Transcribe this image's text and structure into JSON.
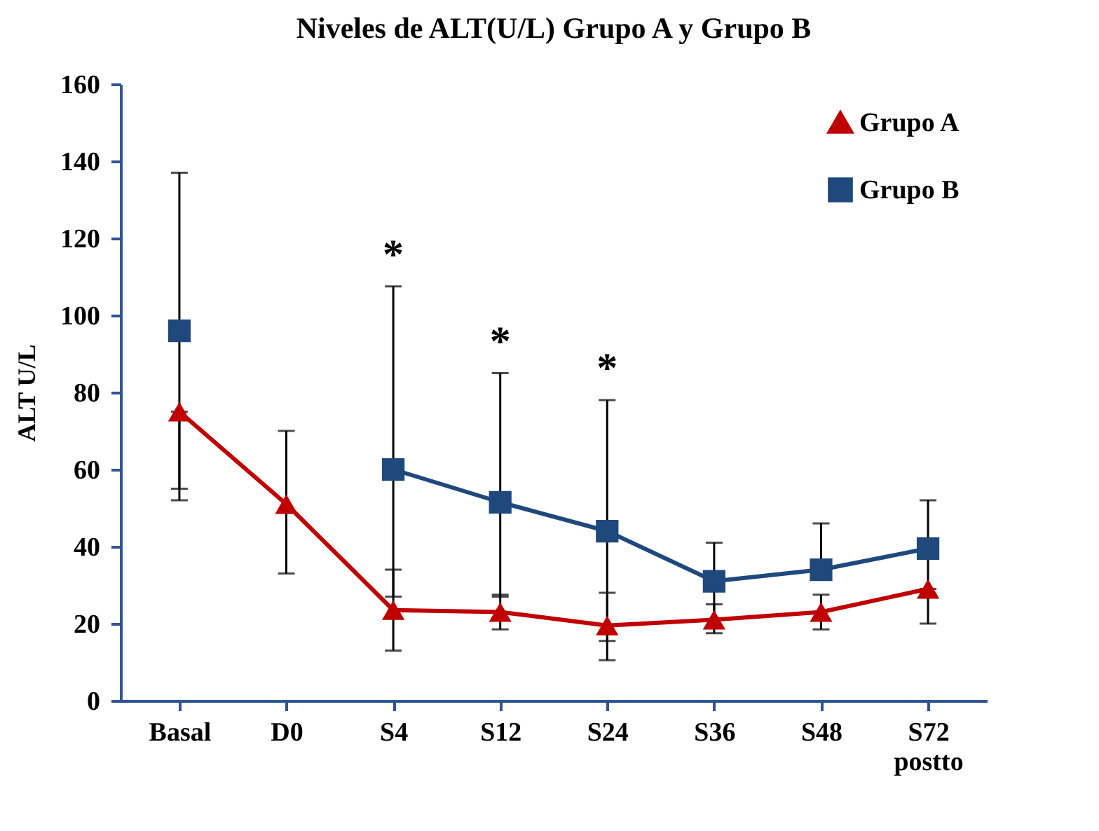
{
  "chart_data": {
    "type": "line",
    "title": "Niveles de ALT(U/L) Grupo A  y Grupo B",
    "ylabel": "ALT U/L",
    "categories": [
      "Basal",
      "D0",
      "S4",
      "S12",
      "S24",
      "S36",
      "S48",
      "S72 postto"
    ],
    "series": [
      {
        "name": "Grupo A",
        "color": "#c00000",
        "marker": "triangle",
        "values": [
          75,
          51,
          23.5,
          23,
          19.5,
          21,
          23,
          29
        ],
        "errors": [
          [
            52,
            75
          ],
          [
            33,
            70
          ],
          [
            13,
            34
          ],
          [
            18.5,
            27.5
          ],
          [
            10.5,
            28
          ],
          [
            17.5,
            25
          ],
          [
            18.5,
            27.5
          ],
          [
            20,
            29
          ]
        ]
      },
      {
        "name": "Grupo B",
        "color": "#1f497d",
        "marker": "square",
        "values": [
          96,
          null,
          60,
          51.5,
          44,
          31,
          34,
          39.5
        ],
        "errors": [
          [
            55,
            137
          ],
          null,
          [
            27,
            107.5
          ],
          [
            27,
            85
          ],
          [
            15.5,
            78
          ],
          [
            21,
            41
          ],
          [
            34,
            46
          ],
          [
            27.5,
            52
          ]
        ]
      }
    ],
    "annotations": [
      {
        "text": "*",
        "x": "S4",
        "y": 107.5
      },
      {
        "text": "*",
        "x": "S12",
        "y": 85
      },
      {
        "text": "*",
        "x": "S24",
        "y": 78
      }
    ],
    "ylim": [
      0,
      160
    ],
    "yticks": [
      0,
      20,
      40,
      60,
      80,
      100,
      120,
      140,
      160
    ],
    "grid": false,
    "legend": "top right"
  }
}
